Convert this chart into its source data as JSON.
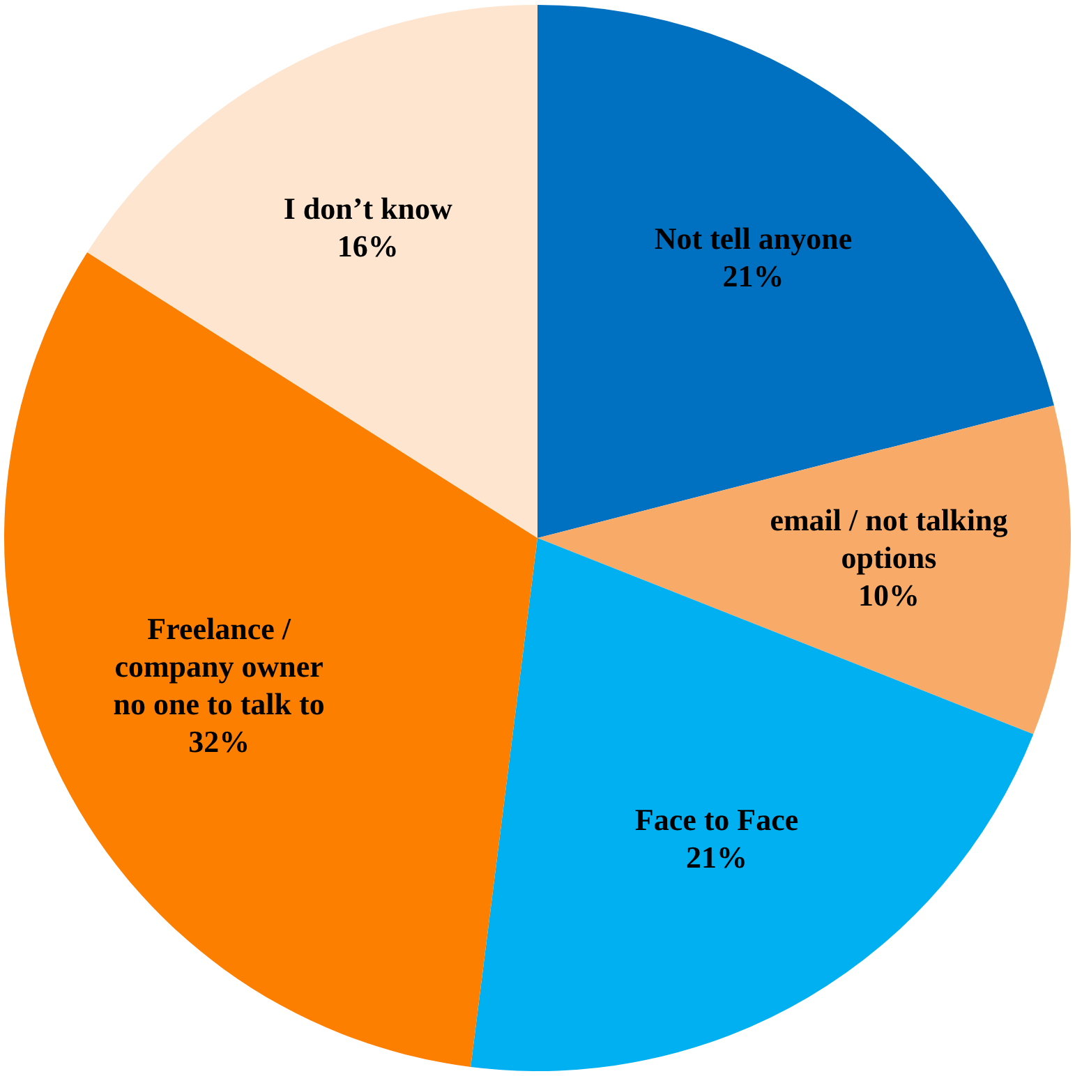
{
  "chart_data": {
    "type": "pie",
    "categories": [
      "Not tell anyone",
      "email / not talking options",
      "Face to Face",
      "Freelance / company owner no one to talk to",
      "I don’t know"
    ],
    "values": [
      21,
      10,
      21,
      32,
      16
    ],
    "value_labels": [
      "21%",
      "10%",
      "21%",
      "32%",
      "16%"
    ],
    "colors": [
      "#0070c0",
      "#f8ab68",
      "#00b0f0",
      "#fd7f00",
      "#fde5cf"
    ],
    "legend": false
  }
}
